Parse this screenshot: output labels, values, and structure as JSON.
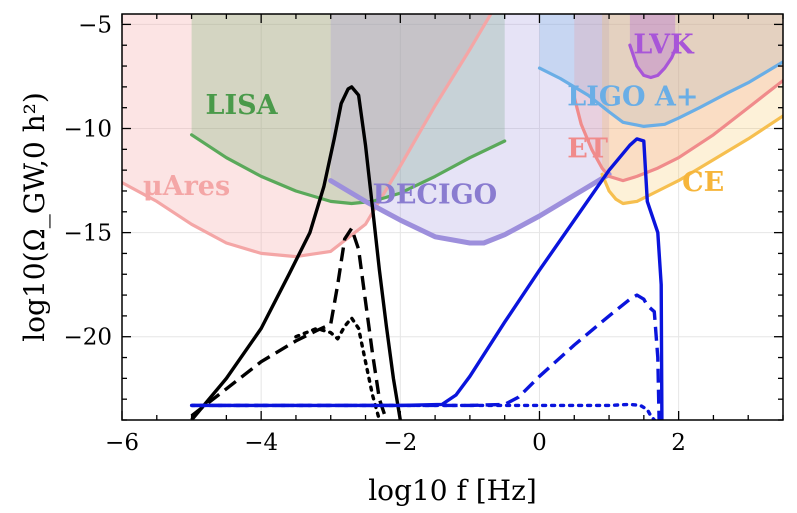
{
  "chart_data": {
    "type": "line",
    "title": "",
    "xlabel": "log10 f [Hz]",
    "ylabel": "log10(Ω_GW,0 h²)",
    "xlim": [
      -6,
      3.5
    ],
    "ylim": [
      -24,
      -4.5
    ],
    "xticks": [
      -6,
      -4,
      -2,
      0,
      2
    ],
    "xtick_labels": [
      "−6",
      "−4",
      "−2",
      "0",
      "2"
    ],
    "yticks": [
      -5,
      -10,
      -15,
      -20
    ],
    "ytick_labels": [
      "−5",
      "−10",
      "−15",
      "−20"
    ],
    "grid": true,
    "sensitivity_curves": [
      {
        "name": "μAres",
        "color": "#f4a6a6",
        "x": [
          -6.0,
          -5.5,
          -5.0,
          -4.5,
          -4.0,
          -3.5,
          -3.0,
          -2.5,
          -2.0,
          -1.5,
          -1.0,
          -0.7
        ],
        "y": [
          -12.6,
          -13.5,
          -14.6,
          -15.5,
          -16.0,
          -16.15,
          -15.9,
          -14.6,
          -11.8,
          -8.9,
          -6.2,
          -4.5
        ]
      },
      {
        "name": "LISA",
        "color": "#5aa95a",
        "x": [
          -5.0,
          -4.5,
          -4.0,
          -3.5,
          -3.0,
          -2.7,
          -2.4,
          -2.0,
          -1.5,
          -1.0,
          -0.5
        ],
        "y": [
          -10.3,
          -11.4,
          -12.3,
          -13.0,
          -13.5,
          -13.6,
          -13.5,
          -13.1,
          -12.3,
          -11.4,
          -10.6
        ]
      },
      {
        "name": "DECIGO",
        "color": "#9d8fdc",
        "x": [
          -3.0,
          -2.5,
          -2.0,
          -1.5,
          -1.0,
          -0.8,
          -0.5,
          0.0,
          0.5,
          1.0
        ],
        "y": [
          -12.5,
          -13.5,
          -14.4,
          -15.2,
          -15.5,
          -15.5,
          -15.1,
          -14.2,
          -13.2,
          -12.2
        ]
      },
      {
        "name": "ET",
        "color": "#f08b8b",
        "x": [
          0.5,
          0.6,
          0.75,
          0.9,
          1.0,
          1.2,
          1.4,
          1.7,
          2.0,
          2.5,
          3.0,
          3.5
        ],
        "y": [
          -8.5,
          -9.8,
          -11.0,
          -11.9,
          -12.3,
          -12.5,
          -12.3,
          -11.9,
          -11.4,
          -10.3,
          -9.0,
          -7.7
        ]
      },
      {
        "name": "CE",
        "color": "#f6bf4f",
        "x": [
          0.9,
          1.0,
          1.1,
          1.2,
          1.4,
          1.7,
          2.0,
          2.5,
          3.0,
          3.5
        ],
        "y": [
          -12.2,
          -13.0,
          -13.4,
          -13.6,
          -13.5,
          -13.0,
          -12.5,
          -11.5,
          -10.5,
          -9.4
        ]
      },
      {
        "name": "LIGO A+",
        "color": "#6aaee6",
        "x": [
          0.0,
          0.3,
          0.7,
          1.0,
          1.2,
          1.5,
          1.8,
          2.0,
          2.3,
          2.7,
          3.0,
          3.5
        ],
        "y": [
          -7.1,
          -7.6,
          -8.4,
          -9.2,
          -9.7,
          -9.9,
          -9.8,
          -9.5,
          -9.0,
          -8.3,
          -7.8,
          -6.8
        ]
      },
      {
        "name": "LVK",
        "color": "#a855d8",
        "x": [
          1.3,
          1.4,
          1.5,
          1.6,
          1.7,
          1.8,
          1.9,
          1.95
        ],
        "y": [
          -6.0,
          -7.0,
          -7.45,
          -7.55,
          -7.45,
          -7.1,
          -6.6,
          -6.2
        ]
      }
    ],
    "shaded_regions": [
      {
        "name": "μAres",
        "color": "#f4a6a6",
        "opacity": 0.3,
        "x0": -6.0,
        "x1": 3.5
      },
      {
        "name": "LISA",
        "color": "#5aa95a",
        "opacity": 0.25,
        "x0": -5.0,
        "x1": -0.5
      },
      {
        "name": "DECIGO",
        "color": "#9d8fdc",
        "opacity": 0.25,
        "x0": -3.0,
        "x1": 1.0
      },
      {
        "name": "LIGO A+",
        "color": "#6aaee6",
        "opacity": 0.25,
        "x0": 0.0,
        "x1": 3.5
      },
      {
        "name": "ET",
        "color": "#f08b8b",
        "opacity": 0.22,
        "x0": 0.5,
        "x1": 3.5
      },
      {
        "name": "CE",
        "color": "#f6bf4f",
        "opacity": 0.22,
        "x0": 0.9,
        "x1": 3.5
      },
      {
        "name": "LVK",
        "color": "#a855d8",
        "opacity": 0.3,
        "x0": 1.3,
        "x1": 1.95
      }
    ],
    "detector_labels": [
      {
        "text": "LISA",
        "color": "#4a9a4a",
        "x": -4.8,
        "y": -9.3
      },
      {
        "text": "μAres",
        "color": "#f4a6a6",
        "x": -5.7,
        "y": -13.2
      },
      {
        "text": "DECIGO",
        "color": "#8a7cd0",
        "x": -2.4,
        "y": -13.6
      },
      {
        "text": "LIGO A+",
        "color": "#6aaee6",
        "x": 0.4,
        "y": -8.9
      },
      {
        "text": "ET",
        "color": "#f08b8b",
        "x": 0.4,
        "y": -11.4
      },
      {
        "text": "CE",
        "color": "#f6b53a",
        "x": 2.05,
        "y": -13.0
      },
      {
        "text": "LVK",
        "color": "#a855d8",
        "x": 1.35,
        "y": -6.4
      }
    ],
    "series": [
      {
        "group": "black",
        "style": "solid",
        "color": "#000000",
        "x": [
          -5.0,
          -4.5,
          -4.0,
          -3.6,
          -3.3,
          -3.1,
          -2.95,
          -2.85,
          -2.75,
          -2.7,
          -2.6,
          -2.5,
          -2.4,
          -2.3,
          -2.2,
          -2.1,
          -2.0
        ],
        "y": [
          -24,
          -22.0,
          -19.6,
          -17.0,
          -15.0,
          -12.8,
          -10.5,
          -8.8,
          -8.1,
          -8.0,
          -8.4,
          -10.8,
          -13.8,
          -16.8,
          -19.5,
          -22.0,
          -24
        ]
      },
      {
        "group": "black",
        "style": "dashed",
        "color": "#000000",
        "x": [
          -5.0,
          -4.5,
          -4.0,
          -3.5,
          -3.2,
          -3.0,
          -2.9,
          -2.8,
          -2.7,
          -2.6,
          -2.5,
          -2.4,
          -2.3,
          -2.2
        ],
        "y": [
          -23.8,
          -22.5,
          -21.2,
          -20.2,
          -19.7,
          -19.4,
          -17.5,
          -15.3,
          -14.8,
          -15.8,
          -18.3,
          -20.8,
          -23.0,
          -24
        ]
      },
      {
        "group": "black",
        "style": "dotted",
        "color": "#000000",
        "x": [
          -3.5,
          -3.2,
          -3.0,
          -2.9,
          -2.8,
          -2.7,
          -2.6,
          -2.5,
          -2.4,
          -2.3
        ],
        "y": [
          -20.0,
          -19.6,
          -19.8,
          -20.1,
          -19.5,
          -19.1,
          -19.6,
          -21.2,
          -22.8,
          -24
        ]
      },
      {
        "group": "blue",
        "style": "solid",
        "color": "#0a14dc",
        "x": [
          -5.0,
          -2.0,
          -1.4,
          -1.2,
          -1.0,
          -0.5,
          0.0,
          0.5,
          1.0,
          1.3,
          1.4,
          1.5,
          1.55,
          1.7,
          1.75,
          1.76
        ],
        "y": [
          -23.3,
          -23.3,
          -23.25,
          -22.8,
          -21.9,
          -19.3,
          -16.8,
          -14.4,
          -12.0,
          -10.8,
          -10.5,
          -10.6,
          -13.5,
          -15.0,
          -17.5,
          -24
        ]
      },
      {
        "group": "blue",
        "style": "dashed",
        "color": "#0a14dc",
        "x": [
          -5.0,
          -1.0,
          -0.5,
          -0.3,
          0.0,
          0.5,
          1.0,
          1.3,
          1.4,
          1.5,
          1.55,
          1.65,
          1.7,
          1.72
        ],
        "y": [
          -23.3,
          -23.3,
          -23.25,
          -22.9,
          -21.9,
          -20.4,
          -19.0,
          -18.2,
          -18.0,
          -18.2,
          -18.5,
          -18.8,
          -21.0,
          -24
        ]
      },
      {
        "group": "blue",
        "style": "dotted",
        "color": "#0a14dc",
        "x": [
          -5.0,
          0.5,
          1.0,
          1.3,
          1.45,
          1.55,
          1.6,
          1.65
        ],
        "y": [
          -23.3,
          -23.3,
          -23.3,
          -23.25,
          -23.3,
          -23.5,
          -23.8,
          -24
        ]
      }
    ]
  }
}
